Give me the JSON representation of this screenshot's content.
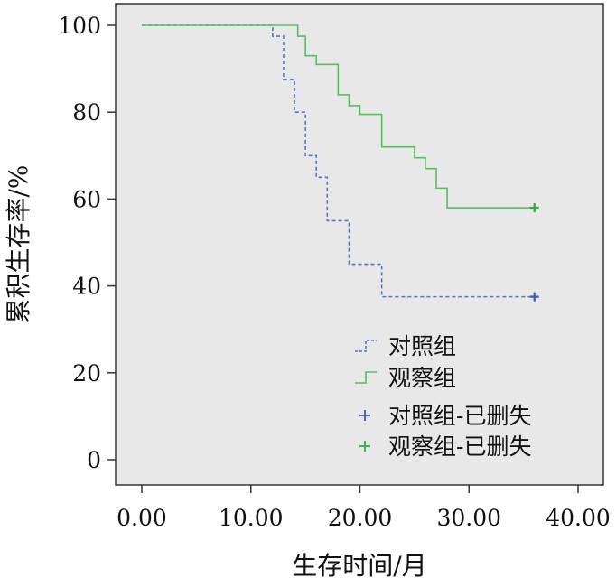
{
  "chart_data": {
    "type": "line",
    "title": "",
    "xlabel": "生存时间/月",
    "ylabel": "累积生存率/%",
    "xlim": [
      0,
      40
    ],
    "ylim": [
      0,
      100
    ],
    "xticks": [
      "0.00",
      "10.00",
      "20.00",
      "30.00",
      "40.00"
    ],
    "yticks": [
      "0",
      "20",
      "40",
      "60",
      "80",
      "100"
    ],
    "grid": false,
    "legend_position": "bottom-right",
    "series": [
      {
        "name": "对照组",
        "style": "dashed-step",
        "color": "#5b73b8",
        "x": [
          0,
          12,
          13,
          14,
          15,
          16,
          17,
          19,
          22,
          36
        ],
        "y": [
          100,
          97.5,
          87.5,
          80,
          70,
          65,
          55,
          45,
          37.5,
          37.5
        ]
      },
      {
        "name": "观察组",
        "style": "solid-step",
        "color": "#5dbb63",
        "x": [
          0,
          14.3,
          15,
          16,
          18,
          19,
          20,
          22,
          25,
          26,
          27,
          28,
          36
        ],
        "y": [
          100,
          97.5,
          93,
          91,
          84,
          81.5,
          79.5,
          72,
          69.5,
          67,
          62.5,
          58,
          58
        ]
      }
    ],
    "censored": [
      {
        "name": "对照组-已删失",
        "color": "#3b5bb8",
        "x": [
          36
        ],
        "y": [
          37.5
        ]
      },
      {
        "name": "观察组-已删失",
        "color": "#2fae3f",
        "x": [
          36
        ],
        "y": [
          58
        ]
      }
    ]
  }
}
